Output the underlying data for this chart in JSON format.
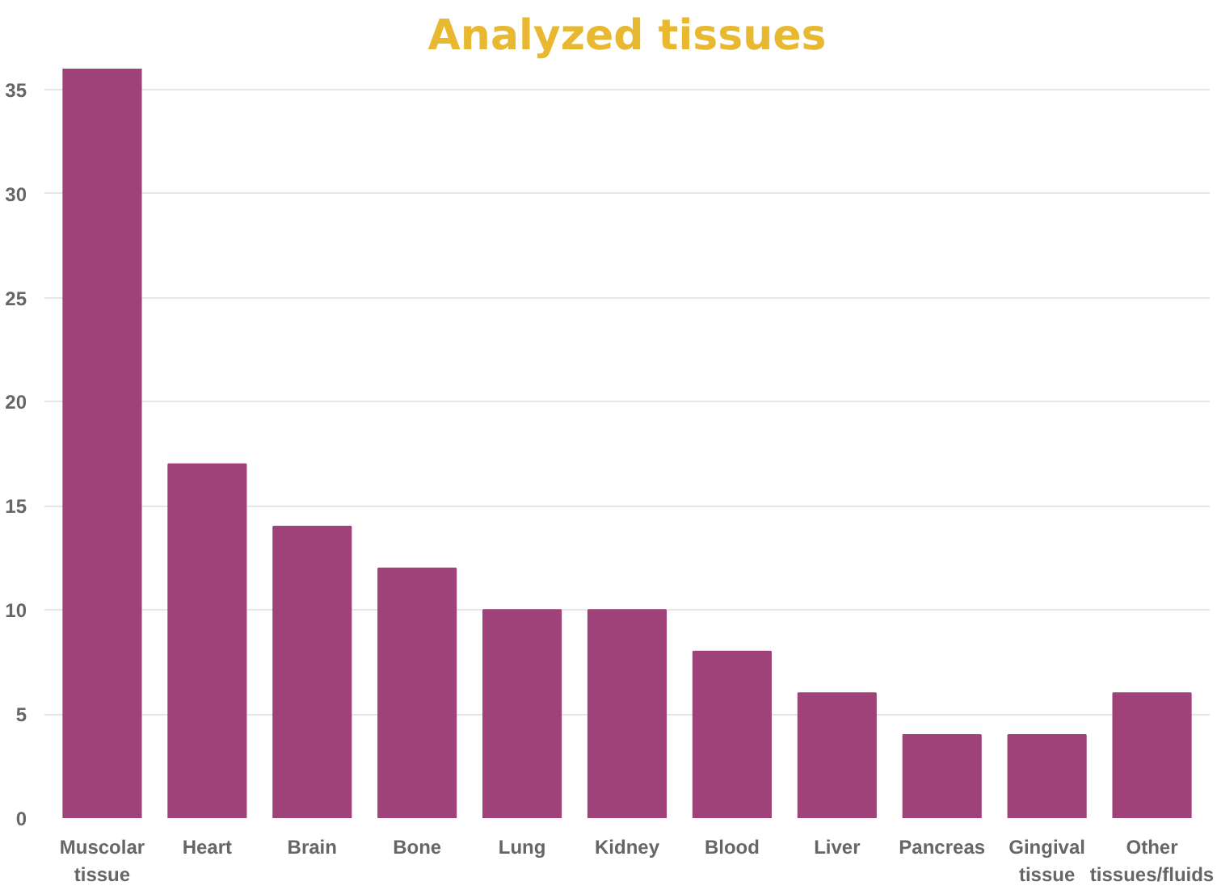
{
  "chart_data": {
    "type": "bar",
    "title": "Analyzed tissues",
    "categories": [
      "Muscolar tissue",
      "Heart",
      "Brain",
      "Bone",
      "Lung",
      "Kidney",
      "Blood",
      "Liver",
      "Pancreas",
      "Gingival tissue",
      "Other tissues/fluids"
    ],
    "values": [
      36,
      17,
      14,
      12,
      10,
      10,
      8,
      6,
      4,
      4,
      6
    ],
    "color": "#a0427a",
    "ylim": [
      0,
      36
    ],
    "yticks": [
      0,
      5,
      10,
      15,
      20,
      25,
      30,
      35
    ],
    "grid": "y"
  }
}
